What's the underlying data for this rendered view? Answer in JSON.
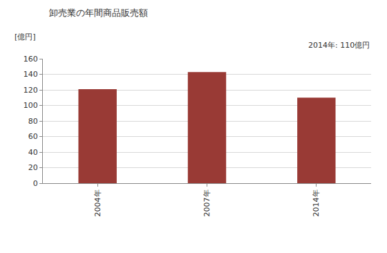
{
  "chart_data": {
    "type": "bar",
    "title": "卸売業の年間商品販売額",
    "y_label": "[億円]",
    "annotation": "2014年: 110億円",
    "categories": [
      "2004年",
      "2007年",
      "2014年"
    ],
    "values": [
      121,
      143,
      110
    ],
    "color": "#993a35",
    "ylim": [
      0,
      160
    ],
    "yticks": [
      0,
      20,
      40,
      60,
      80,
      100,
      120,
      140,
      160
    ],
    "grid": true
  }
}
